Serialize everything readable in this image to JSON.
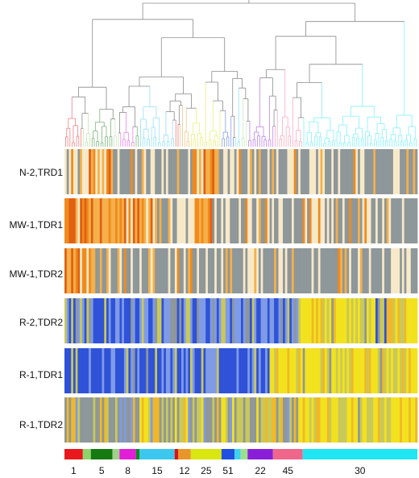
{
  "rows": [
    {
      "label": "N-2,TRD1",
      "palette": "heat"
    },
    {
      "label": "MW-1,TDR1",
      "palette": "heat"
    },
    {
      "label": "MW-1,TDR2",
      "palette": "heat"
    },
    {
      "label": "R-2,TDR2",
      "palette": "cool"
    },
    {
      "label": "R-1,TDR1",
      "palette": "cool"
    },
    {
      "label": "R-1,TDR2",
      "palette": "cool"
    }
  ],
  "clusters": [
    {
      "label": "1",
      "color": "#e8181c"
    },
    {
      "label": "",
      "color": "#8fd36b"
    },
    {
      "label": "5",
      "color": "#157a12"
    },
    {
      "label": "",
      "color": "#9fd18a"
    },
    {
      "label": "8",
      "color": "#e21ed6"
    },
    {
      "label": "",
      "color": "#0a8c1a"
    },
    {
      "label": "15",
      "color": "#3cc8ee"
    },
    {
      "label": "",
      "color": "#d81414"
    },
    {
      "label": "12",
      "color": "#e8962a"
    },
    {
      "label": "25",
      "color": "#d9e60f"
    },
    {
      "label": "51",
      "color": "#1f4fe0"
    },
    {
      "label": "",
      "color": "#3cd2f0"
    },
    {
      "label": "",
      "color": "#9be08d"
    },
    {
      "label": "22",
      "color": "#8a1ed8"
    },
    {
      "label": "45",
      "color": "#f0668a"
    },
    {
      "label": "30",
      "color": "#1fe6f2"
    }
  ],
  "colors": {
    "grey": "#8e979a",
    "cream": "#f7e9c8",
    "orange": "#f08a1c",
    "orange_light": "#f4b04a",
    "orange_dark": "#e06012",
    "red": "#e03a2a",
    "blue": "#2f52d8",
    "blue_light": "#7f9be6",
    "yellow": "#f2e21e",
    "yellow_green": "#c9c85a",
    "gold": "#f0b828"
  }
}
